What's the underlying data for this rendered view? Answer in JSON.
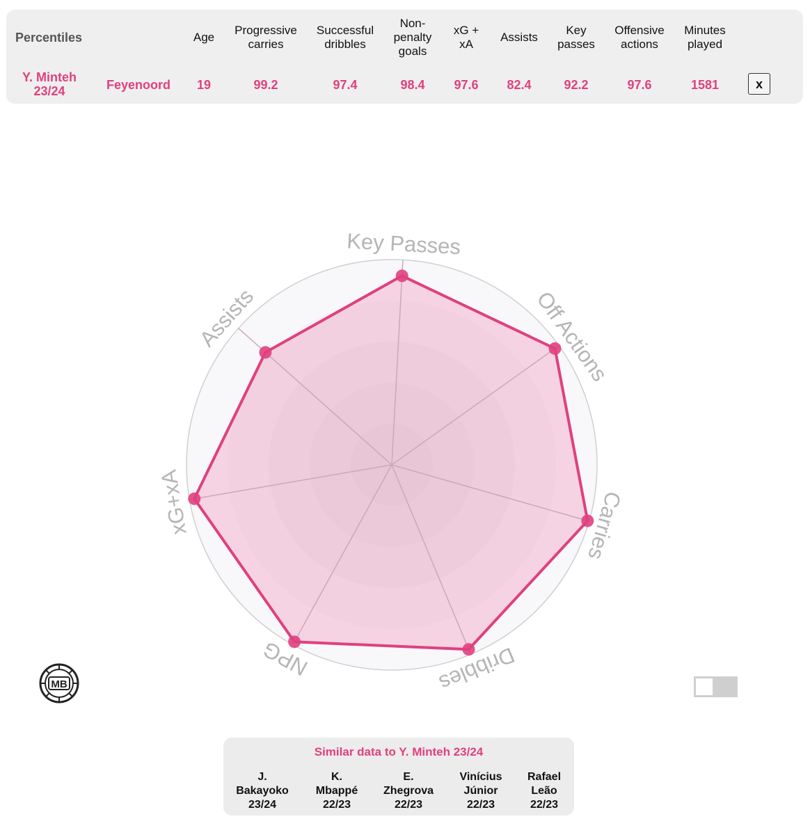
{
  "table": {
    "title": "Percentiles",
    "headers": [
      "Age",
      "Progressive\ncarries",
      "Successful\ndribbles",
      "Non-\npenalty\ngoals",
      "xG +\nxA",
      "Assists",
      "Key\npasses",
      "Offensive\nactions",
      "Minutes\nplayed"
    ],
    "player": {
      "name_line1": "Y. Minteh",
      "name_line2": "23/24",
      "club": "Feyenoord"
    },
    "values": [
      "19",
      "99.2",
      "97.4",
      "98.4",
      "97.6",
      "82.4",
      "92.2",
      "97.6",
      "1581"
    ],
    "remove_label": "x"
  },
  "chart_data": {
    "type": "radar",
    "axes": [
      "Key Passes",
      "Off Actions",
      "Carries",
      "Dribbles",
      "NPG",
      "xG+xA",
      "Assists"
    ],
    "values": [
      92.2,
      97.6,
      99.2,
      97.4,
      98.4,
      97.6,
      82.4
    ],
    "range": [
      0,
      100
    ],
    "color": "#e0407f",
    "fill_color": "#f2a7c6",
    "grid_color": "#d0d0d0",
    "label_color": "#b5b5b5"
  },
  "logo_text": "MB",
  "similar": {
    "title": "Similar data to Y. Minteh 23/24",
    "players": [
      {
        "line1": "J.",
        "line2": "Bakayoko",
        "line3": "23/24"
      },
      {
        "line1": "K.",
        "line2": "Mbappé",
        "line3": "22/23"
      },
      {
        "line1": "E.",
        "line2": "Zhegrova",
        "line3": "22/23"
      },
      {
        "line1": "Vinícius",
        "line2": "Júnior",
        "line3": "22/23"
      },
      {
        "line1": "Rafael",
        "line2": "Leão",
        "line3": "22/23"
      }
    ]
  }
}
